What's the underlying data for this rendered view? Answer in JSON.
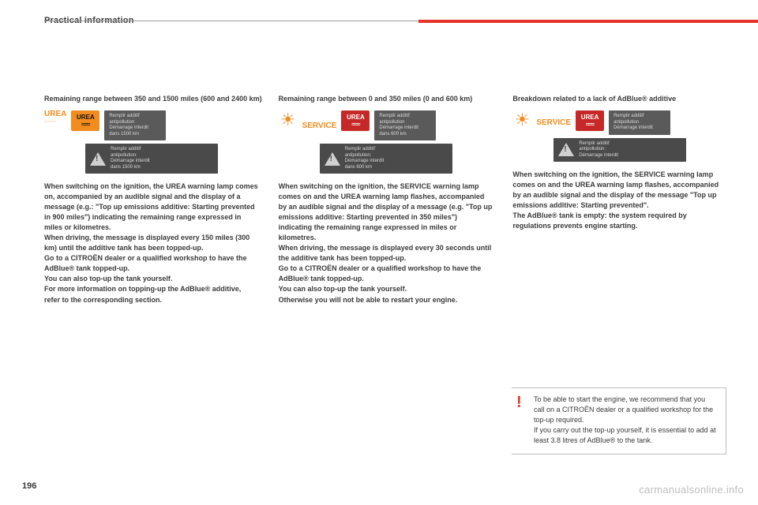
{
  "header": {
    "section_title": "Practical information",
    "rule_grey": "#9a9a9a",
    "rule_red": "#e63329"
  },
  "columns": [
    {
      "heading": "Remaining range between 350 and 1500 miles (600 and 2400 km)",
      "indicator": {
        "type": "urea_text",
        "label": "UREA",
        "sublabel": "······",
        "badge_color": "#f28c1e",
        "badge_text": "UREA",
        "msg": "Remplir additif\nantipollution\nDémarrage interdit\ndans 1500 km"
      },
      "warn_msg": "Remplir additif\nantipollution:\nDémarrage interdit\ndans 1500 km",
      "body": "When switching on the ignition, the UREA warning lamp comes on, accompanied by an audible signal and the display of a message (e.g.: \"Top up emissions additive: Starting prevented in 900 miles\") indicating the remaining range expressed in miles or kilometres.\nWhen driving, the message is displayed every 150 miles (300 km) until the additive tank has been topped-up.\nGo to a CITROËN dealer or a qualified workshop to have the AdBlue® tank topped-up.\nYou can also top-up the tank yourself.\nFor more information on topping-up the AdBlue® additive, refer to the corresponding section."
    },
    {
      "heading": "Remaining range between 0 and 350 miles (0 and 600 km)",
      "indicator": {
        "type": "service_sun",
        "label": "SERVICE",
        "badge_color": "#c62828",
        "badge_text": "UREA",
        "msg": "Remplir additif\nantipollution\nDémarrage interdit\ndans 600 km"
      },
      "warn_msg": "Remplir additif\nantipollution:\nDémarrage interdit\ndans 600 km",
      "body": "When switching on the ignition, the SERVICE warning lamp comes on and the UREA warning lamp flashes, accompanied by an audible signal and the display of a message (e.g. \"Top up emissions additive: Starting prevented in 350 miles\") indicating the remaining range expressed in miles or kilometres.\nWhen driving, the message is displayed every 30 seconds until the additive tank has been topped-up.\nGo to a CITROËN dealer or a qualified workshop to have the AdBlue® tank topped-up.\nYou can also top-up the tank yourself.\nOtherwise you will not be able to restart your engine."
    },
    {
      "heading": "Breakdown related to a lack of AdBlue® additive",
      "indicator": {
        "type": "service_sun",
        "label": "SERVICE",
        "badge_color": "#c62828",
        "badge_text": "UREA",
        "msg": "Remplir additif\nantipollution\nDémarrage interdit"
      },
      "warn_msg": "Remplir additif\nantipollution:\nDémarrage interdit",
      "body": "When switching on the ignition, the SERVICE warning lamp comes on and the UREA warning lamp flashes, accompanied by an audible signal and the display of the message \"Top up emissions additive: Starting prevented\".\nThe AdBlue® tank is empty: the system required by regulations prevents engine starting."
    }
  ],
  "note": {
    "icon": "!",
    "icon_color": "#e63329",
    "text": "To be able to start the engine, we recommend that you call on a CITROËN dealer or a qualified workshop for the top-up required.\nIf you carry out the top-up yourself, it is essential to add at least 3.8 litres of AdBlue® to the tank."
  },
  "footer": {
    "page_number": "196",
    "watermark": "carmanualsonline.info"
  },
  "palette": {
    "text": "#3a3a3a",
    "orange": "#f28c1e",
    "red_badge": "#c62828",
    "grey_box": "#5a5a5a",
    "grey_box_dark": "#4a4a4a",
    "note_border": "#bdbdbd",
    "watermark": "#bdbdbd"
  }
}
